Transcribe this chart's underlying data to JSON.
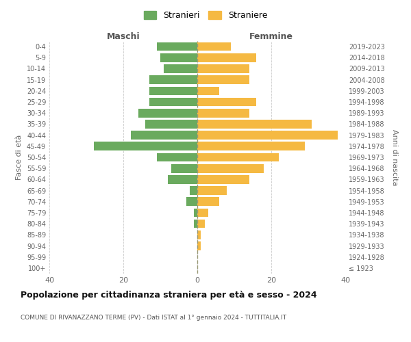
{
  "age_groups": [
    "100+",
    "95-99",
    "90-94",
    "85-89",
    "80-84",
    "75-79",
    "70-74",
    "65-69",
    "60-64",
    "55-59",
    "50-54",
    "45-49",
    "40-44",
    "35-39",
    "30-34",
    "25-29",
    "20-24",
    "15-19",
    "10-14",
    "5-9",
    "0-4"
  ],
  "birth_years": [
    "≤ 1923",
    "1924-1928",
    "1929-1933",
    "1934-1938",
    "1939-1943",
    "1944-1948",
    "1949-1953",
    "1954-1958",
    "1959-1963",
    "1964-1968",
    "1969-1973",
    "1974-1978",
    "1979-1983",
    "1984-1988",
    "1989-1993",
    "1994-1998",
    "1999-2003",
    "2004-2008",
    "2009-2013",
    "2014-2018",
    "2019-2023"
  ],
  "maschi": [
    0,
    0,
    0,
    0,
    1,
    1,
    3,
    2,
    8,
    7,
    11,
    28,
    18,
    14,
    16,
    13,
    13,
    13,
    9,
    10,
    11
  ],
  "femmine": [
    0,
    0,
    1,
    1,
    2,
    3,
    6,
    8,
    14,
    18,
    22,
    29,
    38,
    31,
    14,
    16,
    6,
    14,
    14,
    16,
    9
  ],
  "color_maschi": "#6aaa5e",
  "color_femmine": "#f5b942",
  "title": "Popolazione per cittadinanza straniera per età e sesso - 2024",
  "subtitle": "COMUNE DI RIVANAZZANO TERME (PV) - Dati ISTAT al 1° gennaio 2024 - TUTTITALIA.IT",
  "xlabel_left": "Maschi",
  "xlabel_right": "Femmine",
  "ylabel_left": "Fasce di età",
  "ylabel_right": "Anni di nascita",
  "legend_maschi": "Stranieri",
  "legend_femmine": "Straniere",
  "xlim": 40,
  "background_color": "#ffffff",
  "grid_color": "#cccccc"
}
